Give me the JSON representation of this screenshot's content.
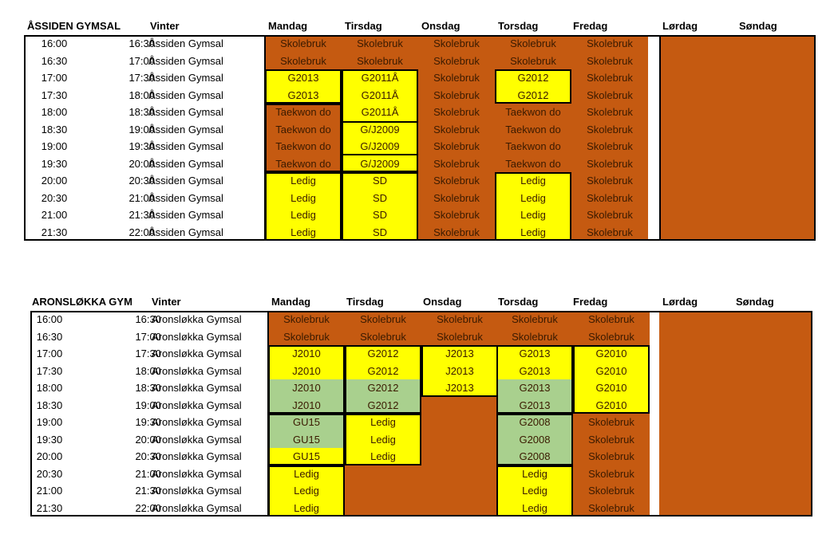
{
  "colors": {
    "school": "#c55a11",
    "free": "#ffff00",
    "green": "#a9d08e",
    "white": "#ffffff",
    "border": "#000000"
  },
  "schedules": [
    {
      "title": "ÅSSIDEN GYMSAL",
      "season": "Vinter",
      "days": [
        "Mandag",
        "Tirsdag",
        "Onsdag",
        "Torsdag",
        "Fredag",
        "Lørdag",
        "Søndag"
      ],
      "rows": [
        {
          "start": "16:00",
          "end": "16:30",
          "place": "Åssiden Gymsal",
          "cells": [
            {
              "t": "Skolebruk",
              "c": "school"
            },
            {
              "t": "Skolebruk",
              "c": "school"
            },
            {
              "t": "Skolebruk",
              "c": "school"
            },
            {
              "t": "Skolebruk",
              "c": "school"
            },
            {
              "t": "Skolebruk",
              "c": "school"
            }
          ]
        },
        {
          "start": "16:30",
          "end": "17:00",
          "place": "Åssiden Gymsal",
          "cells": [
            {
              "t": "Skolebruk",
              "c": "school"
            },
            {
              "t": "Skolebruk",
              "c": "school"
            },
            {
              "t": "Skolebruk",
              "c": "school"
            },
            {
              "t": "Skolebruk",
              "c": "school"
            },
            {
              "t": "Skolebruk",
              "c": "school"
            }
          ]
        },
        {
          "start": "17:00",
          "end": "17:30",
          "place": "Åssiden Gymsal",
          "cells": [
            {
              "t": "G2013",
              "c": "free"
            },
            {
              "t": "G2011Å",
              "c": "free"
            },
            {
              "t": "Skolebruk",
              "c": "school"
            },
            {
              "t": "G2012",
              "c": "free"
            },
            {
              "t": "Skolebruk",
              "c": "school"
            }
          ]
        },
        {
          "start": "17:30",
          "end": "18:00",
          "place": "Åssiden Gymsal",
          "cells": [
            {
              "t": "G2013",
              "c": "free"
            },
            {
              "t": "G2011Å",
              "c": "free"
            },
            {
              "t": "Skolebruk",
              "c": "school"
            },
            {
              "t": "G2012",
              "c": "free"
            },
            {
              "t": "Skolebruk",
              "c": "school"
            }
          ]
        },
        {
          "start": "18:00",
          "end": "18:30",
          "place": "Åssiden Gymsal",
          "cells": [
            {
              "t": "Taekwon do",
              "c": "school"
            },
            {
              "t": "G2011Å",
              "c": "free"
            },
            {
              "t": "Skolebruk",
              "c": "school"
            },
            {
              "t": "Taekwon do",
              "c": "school"
            },
            {
              "t": "Skolebruk",
              "c": "school"
            }
          ]
        },
        {
          "start": "18:30",
          "end": "19:00",
          "place": "Åssiden Gymsal",
          "cells": [
            {
              "t": "Taekwon do",
              "c": "school"
            },
            {
              "t": "G/J2009",
              "c": "free"
            },
            {
              "t": "Skolebruk",
              "c": "school"
            },
            {
              "t": "Taekwon do",
              "c": "school"
            },
            {
              "t": "Skolebruk",
              "c": "school"
            }
          ]
        },
        {
          "start": "19:00",
          "end": "19:30",
          "place": "Åssiden Gymsal",
          "cells": [
            {
              "t": "Taekwon do",
              "c": "school"
            },
            {
              "t": "G/J2009",
              "c": "free"
            },
            {
              "t": "Skolebruk",
              "c": "school"
            },
            {
              "t": "Taekwon do",
              "c": "school"
            },
            {
              "t": "Skolebruk",
              "c": "school"
            }
          ]
        },
        {
          "start": "19:30",
          "end": "20:00",
          "place": "Åssiden Gymsal",
          "cells": [
            {
              "t": "Taekwon do",
              "c": "school"
            },
            {
              "t": "G/J2009",
              "c": "free"
            },
            {
              "t": "Skolebruk",
              "c": "school"
            },
            {
              "t": "Taekwon do",
              "c": "school"
            },
            {
              "t": "Skolebruk",
              "c": "school"
            }
          ]
        },
        {
          "start": "20:00",
          "end": "20:30",
          "place": "Åssiden Gymsal",
          "cells": [
            {
              "t": "Ledig",
              "c": "free"
            },
            {
              "t": "SD",
              "c": "free"
            },
            {
              "t": "Skolebruk",
              "c": "school"
            },
            {
              "t": "Ledig",
              "c": "free"
            },
            {
              "t": "Skolebruk",
              "c": "school"
            }
          ]
        },
        {
          "start": "20:30",
          "end": "21:00",
          "place": "Åssiden Gymsal",
          "cells": [
            {
              "t": "Ledig",
              "c": "free"
            },
            {
              "t": "SD",
              "c": "free"
            },
            {
              "t": "Skolebruk",
              "c": "school"
            },
            {
              "t": "Ledig",
              "c": "free"
            },
            {
              "t": "Skolebruk",
              "c": "school"
            }
          ]
        },
        {
          "start": "21:00",
          "end": "21:30",
          "place": "Åssiden Gymsal",
          "cells": [
            {
              "t": "Ledig",
              "c": "free"
            },
            {
              "t": "SD",
              "c": "free"
            },
            {
              "t": "Skolebruk",
              "c": "school"
            },
            {
              "t": "Ledig",
              "c": "free"
            },
            {
              "t": "Skolebruk",
              "c": "school"
            }
          ]
        },
        {
          "start": "21:30",
          "end": "22:00",
          "place": "Åssiden Gymsal",
          "cells": [
            {
              "t": "Ledig",
              "c": "free"
            },
            {
              "t": "SD",
              "c": "free"
            },
            {
              "t": "Skolebruk",
              "c": "school"
            },
            {
              "t": "Ledig",
              "c": "free"
            },
            {
              "t": "Skolebruk",
              "c": "school"
            }
          ]
        }
      ]
    },
    {
      "title": "ARONSLØKKA GYM",
      "season": "Vinter",
      "days": [
        "Mandag",
        "Tirsdag",
        "Onsdag",
        "Torsdag",
        "Fredag",
        "Lørdag",
        "Søndag"
      ],
      "rows": [
        {
          "start": "16:00",
          "end": "16:30",
          "place": "Aronsløkka Gymsal",
          "cells": [
            {
              "t": "Skolebruk",
              "c": "school"
            },
            {
              "t": "Skolebruk",
              "c": "school"
            },
            {
              "t": "Skolebruk",
              "c": "school"
            },
            {
              "t": "Skolebruk",
              "c": "school"
            },
            {
              "t": "Skolebruk",
              "c": "school"
            }
          ]
        },
        {
          "start": "16:30",
          "end": "17:00",
          "place": "Aronsløkka Gymsal",
          "cells": [
            {
              "t": "Skolebruk",
              "c": "school"
            },
            {
              "t": "Skolebruk",
              "c": "school"
            },
            {
              "t": "Skolebruk",
              "c": "school"
            },
            {
              "t": "Skolebruk",
              "c": "school"
            },
            {
              "t": "Skolebruk",
              "c": "school"
            }
          ]
        },
        {
          "start": "17:00",
          "end": "17:30",
          "place": "Aronsløkka Gymsal",
          "cells": [
            {
              "t": "J2010",
              "c": "free"
            },
            {
              "t": "G2012",
              "c": "free"
            },
            {
              "t": "J2013",
              "c": "free"
            },
            {
              "t": "G2013",
              "c": "free"
            },
            {
              "t": "G2010",
              "c": "free"
            }
          ]
        },
        {
          "start": "17:30",
          "end": "18:00",
          "place": "Aronsløkka Gymsal",
          "cells": [
            {
              "t": "J2010",
              "c": "free"
            },
            {
              "t": "G2012",
              "c": "free"
            },
            {
              "t": "J2013",
              "c": "free"
            },
            {
              "t": "G2013",
              "c": "free"
            },
            {
              "t": "G2010",
              "c": "free"
            }
          ]
        },
        {
          "start": "18:00",
          "end": "18:30",
          "place": "Aronsløkka Gymsal",
          "cells": [
            {
              "t": "J2010",
              "c": "green"
            },
            {
              "t": "G2012",
              "c": "green"
            },
            {
              "t": "J2013",
              "c": "free"
            },
            {
              "t": "G2013",
              "c": "green"
            },
            {
              "t": "G2010",
              "c": "free"
            }
          ]
        },
        {
          "start": "18:30",
          "end": "19:00",
          "place": "Aronsløkka Gymsal",
          "cells": [
            {
              "t": "J2010",
              "c": "green"
            },
            {
              "t": "G2012",
              "c": "green"
            },
            {
              "t": "",
              "c": "school"
            },
            {
              "t": "G2013",
              "c": "green"
            },
            {
              "t": "G2010",
              "c": "free"
            }
          ]
        },
        {
          "start": "19:00",
          "end": "19:30",
          "place": "Aronsløkka Gymsal",
          "cells": [
            {
              "t": "GU15",
              "c": "green"
            },
            {
              "t": "Ledig",
              "c": "free"
            },
            {
              "t": "",
              "c": "school"
            },
            {
              "t": "G2008",
              "c": "green"
            },
            {
              "t": "Skolebruk",
              "c": "school"
            }
          ]
        },
        {
          "start": "19:30",
          "end": "20:00",
          "place": "Aronsløkka Gymsal",
          "cells": [
            {
              "t": "GU15",
              "c": "green"
            },
            {
              "t": "Ledig",
              "c": "free"
            },
            {
              "t": "",
              "c": "school"
            },
            {
              "t": "G2008",
              "c": "green"
            },
            {
              "t": "Skolebruk",
              "c": "school"
            }
          ]
        },
        {
          "start": "20:00",
          "end": "20:30",
          "place": "Aronsløkka Gymsal",
          "cells": [
            {
              "t": "GU15",
              "c": "free"
            },
            {
              "t": "Ledig",
              "c": "free"
            },
            {
              "t": "",
              "c": "school"
            },
            {
              "t": "G2008",
              "c": "green"
            },
            {
              "t": "Skolebruk",
              "c": "school"
            }
          ]
        },
        {
          "start": "20:30",
          "end": "21:00",
          "place": "Aronsløkka Gymsal",
          "cells": [
            {
              "t": "Ledig",
              "c": "free"
            },
            {
              "t": "",
              "c": "school"
            },
            {
              "t": "",
              "c": "school"
            },
            {
              "t": "Ledig",
              "c": "free"
            },
            {
              "t": "Skolebruk",
              "c": "school"
            }
          ]
        },
        {
          "start": "21:00",
          "end": "21:30",
          "place": "Aronsløkka Gymsal",
          "cells": [
            {
              "t": "Ledig",
              "c": "free"
            },
            {
              "t": "",
              "c": "school"
            },
            {
              "t": "",
              "c": "school"
            },
            {
              "t": "Ledig",
              "c": "free"
            },
            {
              "t": "Skolebruk",
              "c": "school"
            }
          ]
        },
        {
          "start": "21:30",
          "end": "22:00",
          "place": "Aronsløkka Gymsal",
          "cells": [
            {
              "t": "Ledig",
              "c": "free"
            },
            {
              "t": "",
              "c": "school"
            },
            {
              "t": "",
              "c": "school"
            },
            {
              "t": "Ledig",
              "c": "free"
            },
            {
              "t": "Skolebruk",
              "c": "school"
            }
          ]
        }
      ]
    }
  ]
}
